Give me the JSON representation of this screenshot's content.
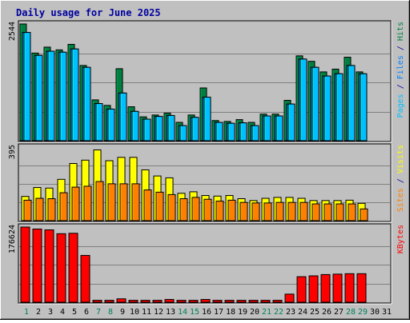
{
  "chart_data": {
    "type": "bar",
    "title": "Daily usage for June 2025",
    "days": [
      "1",
      "2",
      "3",
      "4",
      "5",
      "6",
      "7",
      "8",
      "9",
      "10",
      "11",
      "12",
      "13",
      "14",
      "15",
      "16",
      "17",
      "18",
      "19",
      "20",
      "21",
      "22",
      "23",
      "24",
      "25",
      "26",
      "27",
      "28",
      "29",
      "30",
      "31"
    ],
    "weekend_days": [
      "1",
      "7",
      "8",
      "14",
      "15",
      "21",
      "22",
      "28",
      "29"
    ],
    "panels": [
      {
        "id": "hits-files-pages",
        "ymax_label": "2544",
        "ymax": 2544,
        "axis_label_parts": [
          {
            "text": "Pages",
            "color": "#00C0FF"
          },
          {
            "text": " / ",
            "color": "#0000A0"
          },
          {
            "text": "Files",
            "color": "#0080FF"
          },
          {
            "text": " / ",
            "color": "#0000A0"
          },
          {
            "text": "Hits",
            "color": "#008040"
          }
        ],
        "series": [
          {
            "name": "Hits",
            "color": "#008040",
            "values": [
              2544,
              1910,
              2040,
              1980,
              2100,
              1640,
              890,
              770,
              1570,
              740,
              520,
              560,
              600,
              400,
              560,
              1150,
              440,
              420,
              460,
              400,
              580,
              580,
              880,
              1850,
              1730,
              1500,
              1560,
              1820,
              1500,
              0,
              0
            ]
          },
          {
            "name": "Files",
            "color": "#0080FF",
            "values": [
              2360,
              1860,
              1950,
              1930,
              2000,
              1600,
              810,
              690,
              1040,
              640,
              470,
              530,
              550,
              330,
              510,
              950,
              400,
              380,
              390,
              330,
              540,
              540,
              800,
              1780,
              1600,
              1410,
              1460,
              1640,
              1460,
              0,
              0
            ]
          },
          {
            "name": "Pages",
            "color": "#00C0FF",
            "values": [
              2360,
              1860,
              1950,
              1930,
              2000,
              1600,
              810,
              690,
              1040,
              640,
              470,
              530,
              550,
              330,
              510,
              950,
              400,
              380,
              390,
              330,
              540,
              540,
              800,
              1780,
              1600,
              1410,
              1460,
              1640,
              1460,
              0,
              0
            ]
          }
        ]
      },
      {
        "id": "visits-sites",
        "ymax_label": "395",
        "ymax": 395,
        "axis_label_parts": [
          {
            "text": "Sites",
            "color": "#FF8000"
          },
          {
            "text": " / ",
            "color": "#0000A0"
          },
          {
            "text": "Visits",
            "color": "#FFFF00"
          }
        ],
        "series": [
          {
            "name": "Visits",
            "color": "#FFFF00",
            "values": [
              130,
              178,
              175,
              222,
              307,
              325,
              380,
              322,
              340,
              340,
              273,
              240,
              230,
              147,
              155,
              135,
              132,
              135,
              118,
              108,
              120,
              125,
              125,
              120,
              108,
              108,
              108,
              110,
              93,
              0,
              0
            ]
          },
          {
            "name": "Sites",
            "color": "#FF8000",
            "values": [
              110,
              120,
              118,
              150,
              180,
              185,
              210,
              198,
              198,
              198,
              165,
              153,
              140,
              118,
              125,
              115,
              105,
              110,
              98,
              95,
              95,
              98,
              98,
              98,
              90,
              90,
              90,
              90,
              63,
              0,
              0
            ]
          }
        ]
      },
      {
        "id": "kbytes",
        "ymax_label": "176624",
        "ymax": 176624,
        "axis_label_parts": [
          {
            "text": "KBytes",
            "color": "#FF0000"
          }
        ],
        "series": [
          {
            "name": "KBytes",
            "color": "#FF0000",
            "values": [
              176624,
              172000,
              170000,
              161000,
              162000,
              110000,
              4500,
              4500,
              8000,
              4500,
              4500,
              4500,
              6500,
              4500,
              4500,
              6500,
              4500,
              4500,
              4500,
              4500,
              4500,
              4500,
              19000,
              60000,
              62000,
              65000,
              66000,
              67000,
              67000,
              0,
              0
            ]
          }
        ]
      }
    ]
  }
}
